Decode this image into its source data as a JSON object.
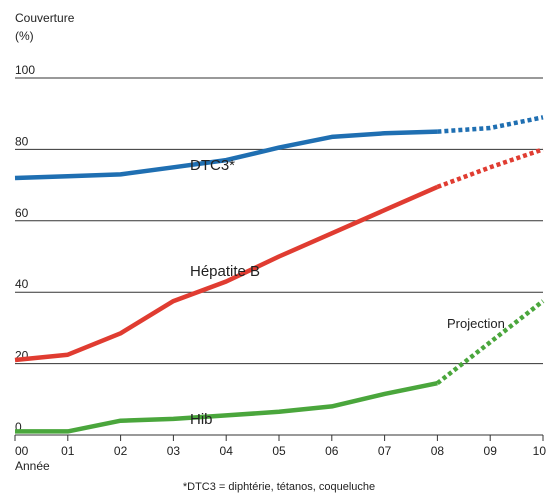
{
  "chart_data": {
    "type": "line",
    "ylabel_line1": "Couverture",
    "ylabel_line2": "(%)",
    "xlabel": "Année",
    "ylim": [
      0,
      100
    ],
    "yticks": [
      0,
      20,
      40,
      60,
      80,
      100
    ],
    "ytick_labels": [
      "0",
      "20",
      "40",
      "60",
      "80",
      "100"
    ],
    "x_categories": [
      "00",
      "01",
      "02",
      "03",
      "04",
      "05",
      "06",
      "07",
      "08",
      "09",
      "10"
    ],
    "grid": "horizontal",
    "series": [
      {
        "name": "DTC3*",
        "color": "#1f6fb2",
        "x": [
          "00",
          "01",
          "02",
          "03",
          "04",
          "05",
          "06",
          "07",
          "08"
        ],
        "values": [
          72,
          72.5,
          73,
          75,
          77,
          80.5,
          83.5,
          84.5,
          85
        ],
        "projection": {
          "x": [
            "08",
            "09",
            "10"
          ],
          "values": [
            85,
            86,
            89
          ]
        }
      },
      {
        "name": "Hépatite B",
        "color": "#e03c31",
        "x": [
          "00",
          "01",
          "02",
          "03",
          "04",
          "05",
          "06",
          "07",
          "08"
        ],
        "values": [
          21,
          22.5,
          28.5,
          37.5,
          43,
          50,
          56.5,
          63,
          69.5
        ],
        "projection": {
          "x": [
            "08",
            "09",
            "10"
          ],
          "values": [
            69.5,
            75,
            80
          ]
        }
      },
      {
        "name": "Hib",
        "color": "#4aa63c",
        "x": [
          "00",
          "01",
          "02",
          "03",
          "04",
          "05",
          "06",
          "07",
          "08"
        ],
        "values": [
          1,
          1,
          4,
          4.5,
          5.5,
          6.5,
          8,
          11.5,
          14.5
        ],
        "projection": {
          "x": [
            "08",
            "09",
            "10"
          ],
          "values": [
            14.5,
            26,
            37.5
          ]
        }
      }
    ],
    "annotations": [
      "Projection"
    ],
    "footnote": "*DTC3 = diphtérie, tétanos, coqueluche"
  }
}
